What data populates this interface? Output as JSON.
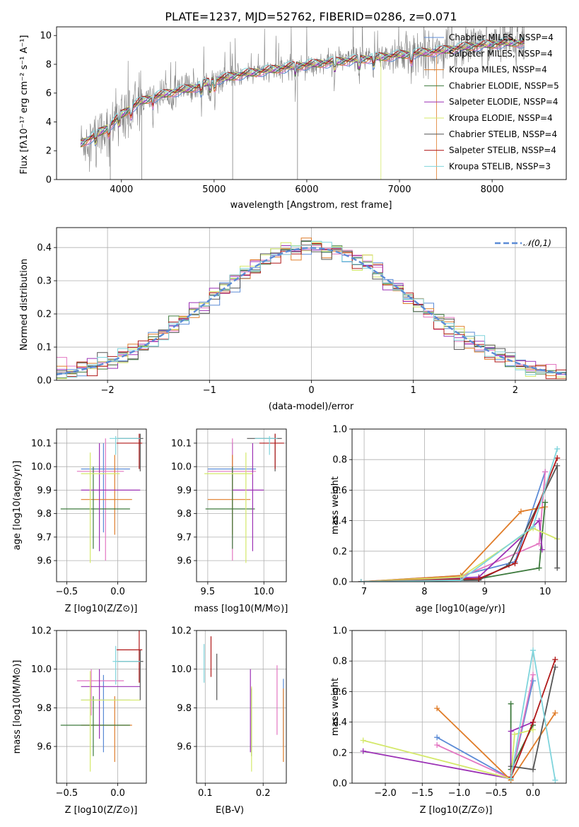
{
  "colors": {
    "chabrier_miles": "#5b8bd6",
    "salpeter_miles": "#e377c2",
    "kroupa_miles": "#e07d2a",
    "chabrier_elodie": "#3d7a3d",
    "salpeter_elodie": "#9b30b5",
    "kroupa_elodie": "#d4e86a",
    "chabrier_stelib": "#555555",
    "salpeter_stelib": "#b01818",
    "kroupa_stelib": "#7fd4dc",
    "data": "#808080",
    "gauss": "#5b8bd6"
  },
  "chart_data": [
    {
      "id": "spectrum",
      "type": "line",
      "title": "PLATE=1237, MJD=52762, FIBERID=0286, z=0.071",
      "xlabel": "wavelength [Angstrom, rest frame]",
      "ylabel": "Flux [fλ10⁻¹⁷ erg cm⁻² s⁻¹ A⁻¹]",
      "xlim": [
        3300,
        8800
      ],
      "ylim": [
        0,
        10.6
      ],
      "xticks": [
        4000,
        5000,
        6000,
        7000,
        8000
      ],
      "yticks": [
        0,
        2,
        4,
        6,
        8,
        10
      ],
      "legend_position": "top-right",
      "legend": [
        {
          "label": "Chabrier MILES, NSSP=4",
          "color": "#5b8bd6"
        },
        {
          "label": "Salpeter MILES, NSSP=4",
          "color": "#e377c2"
        },
        {
          "label": "Kroupa MILES, NSSP=4",
          "color": "#e07d2a"
        },
        {
          "label": "Chabrier ELODIE, NSSP=5",
          "color": "#3d7a3d"
        },
        {
          "label": "Salpeter ELODIE, NSSP=4",
          "color": "#9b30b5"
        },
        {
          "label": "Kroupa ELODIE, NSSP=4",
          "color": "#d4e86a"
        },
        {
          "label": "Chabrier STELIB, NSSP=4",
          "color": "#555555"
        },
        {
          "label": "Salpeter STELIB, NSSP=4",
          "color": "#b01818"
        },
        {
          "label": "Kroupa STELIB, NSSP=3",
          "color": "#7fd4dc"
        }
      ],
      "continuum": [
        [
          3560,
          2.5
        ],
        [
          3700,
          3.0
        ],
        [
          3850,
          3.6
        ],
        [
          4000,
          4.5
        ],
        [
          4200,
          5.4
        ],
        [
          4500,
          6.0
        ],
        [
          4800,
          6.4
        ],
        [
          5000,
          6.9
        ],
        [
          5300,
          7.3
        ],
        [
          5600,
          7.6
        ],
        [
          5900,
          7.9
        ],
        [
          6200,
          8.1
        ],
        [
          6500,
          8.3
        ],
        [
          6800,
          8.5
        ],
        [
          7100,
          8.7
        ],
        [
          7400,
          8.9
        ],
        [
          7700,
          9.2
        ],
        [
          8000,
          9.4
        ],
        [
          8200,
          9.5
        ]
      ]
    },
    {
      "id": "residuals",
      "type": "bar",
      "xlabel": "(data-model)/error",
      "ylabel": "Normed distribution",
      "xlim": [
        -2.5,
        2.5
      ],
      "ylim": [
        0,
        0.46
      ],
      "xticks": [
        -2,
        -1,
        0,
        1,
        2
      ],
      "yticks": [
        0.0,
        0.1,
        0.2,
        0.3,
        0.4
      ],
      "grid": true,
      "legend_position": "top-right",
      "gauss_label": "𝒩(0,1)"
    },
    {
      "id": "age-vs-Z",
      "type": "scatter",
      "xlabel": "Z [log10(Z/Z⊙)]",
      "ylabel": "age [log10(age/yr)]",
      "xlim": [
        -0.6,
        0.28
      ],
      "ylim": [
        9.51,
        10.16
      ],
      "xticks": [
        -0.5,
        0.0
      ],
      "yticks": [
        9.6,
        9.7,
        9.8,
        9.9,
        10.0,
        10.1
      ],
      "grid": true,
      "points": [
        {
          "c": "#5b8bd6",
          "x": -0.14,
          "xe": [
            -0.36,
            0.12
          ],
          "y": 9.99,
          "ye": [
            9.72,
            10.1
          ]
        },
        {
          "c": "#e377c2",
          "x": -0.12,
          "xe": [
            -0.4,
            0.06
          ],
          "y": 9.98,
          "ye": [
            9.6,
            10.12
          ]
        },
        {
          "c": "#e07d2a",
          "x": -0.03,
          "xe": [
            -0.36,
            0.14
          ],
          "y": 9.86,
          "ye": [
            9.71,
            10.05
          ]
        },
        {
          "c": "#3d7a3d",
          "x": -0.24,
          "xe": [
            -0.56,
            0.12
          ],
          "y": 9.82,
          "ye": [
            9.65,
            10.0
          ]
        },
        {
          "c": "#9b30b5",
          "x": -0.18,
          "xe": [
            -0.36,
            0.22
          ],
          "y": 9.9,
          "ye": [
            9.64,
            10.1
          ]
        },
        {
          "c": "#d4e86a",
          "x": -0.27,
          "xe": [
            -0.36,
            0.02
          ],
          "y": 9.97,
          "ye": [
            9.59,
            10.06
          ]
        },
        {
          "c": "#555555",
          "x": 0.22,
          "xe": [
            0.0,
            0.25
          ],
          "y": 10.12,
          "ye": [
            9.98,
            10.14
          ]
        },
        {
          "c": "#b01818",
          "x": 0.21,
          "xe": [
            -0.01,
            0.24
          ],
          "y": 10.1,
          "ye": [
            9.99,
            10.14
          ]
        },
        {
          "c": "#7fd4dc",
          "x": -0.02,
          "xe": [
            -0.08,
            0.22
          ],
          "y": 10.12,
          "ye": [
            10.05,
            10.13
          ]
        }
      ]
    },
    {
      "id": "age-vs-mass",
      "type": "scatter",
      "xlabel": "mass [log10(M/M⊙)]",
      "ylabel": "",
      "xlim": [
        9.4,
        10.2
      ],
      "ylim": [
        9.51,
        10.16
      ],
      "xticks": [
        9.5,
        10.0
      ],
      "yticks": [
        9.6,
        9.7,
        9.8,
        9.9,
        10.0,
        10.1
      ],
      "grid": true,
      "points": [
        {
          "c": "#5b8bd6",
          "x": 9.72,
          "xe": [
            9.5,
            9.93
          ],
          "y": 9.99,
          "ye": [
            9.72,
            10.1
          ]
        },
        {
          "c": "#e377c2",
          "x": 9.72,
          "xe": [
            9.5,
            9.93
          ],
          "y": 9.98,
          "ye": [
            9.6,
            10.12
          ]
        },
        {
          "c": "#e07d2a",
          "x": 9.72,
          "xe": [
            9.5,
            9.88
          ],
          "y": 9.86,
          "ye": [
            9.71,
            10.05
          ]
        },
        {
          "c": "#3d7a3d",
          "x": 9.72,
          "xe": [
            9.48,
            9.92
          ],
          "y": 9.82,
          "ye": [
            9.65,
            10.0
          ]
        },
        {
          "c": "#9b30b5",
          "x": 9.9,
          "xe": [
            9.72,
            10.0
          ],
          "y": 9.9,
          "ye": [
            9.64,
            10.1
          ]
        },
        {
          "c": "#d4e86a",
          "x": 9.84,
          "xe": [
            9.47,
            9.9
          ],
          "y": 9.97,
          "ye": [
            9.59,
            10.06
          ]
        },
        {
          "c": "#555555",
          "x": 10.1,
          "xe": [
            9.85,
            10.16
          ],
          "y": 10.12,
          "ye": [
            9.98,
            10.14
          ]
        },
        {
          "c": "#b01818",
          "x": 10.1,
          "xe": [
            9.96,
            10.18
          ],
          "y": 10.1,
          "ye": [
            9.99,
            10.14
          ]
        },
        {
          "c": "#7fd4dc",
          "x": 10.05,
          "xe": [
            9.92,
            10.12
          ],
          "y": 10.12,
          "ye": [
            10.05,
            10.13
          ]
        }
      ]
    },
    {
      "id": "weight-vs-age",
      "type": "line",
      "xlabel": "age [log10(age/yr)]",
      "ylabel": "mass weight",
      "xlim": [
        6.8,
        10.35
      ],
      "ylim": [
        0,
        1.0
      ],
      "xticks": [
        7,
        8,
        9,
        10
      ],
      "yticks": [
        0.0,
        0.2,
        0.4,
        0.6,
        0.8,
        1.0
      ],
      "grid": true,
      "series": [
        {
          "c": "#5b8bd6",
          "x": [
            6.95,
            8.6,
            9.5,
            10.0
          ],
          "y": [
            0.0,
            0.04,
            0.13,
            0.72
          ]
        },
        {
          "c": "#e377c2",
          "x": [
            6.95,
            8.6,
            9.9,
            10.0
          ],
          "y": [
            0.0,
            0.03,
            0.25,
            0.72
          ]
        },
        {
          "c": "#e07d2a",
          "x": [
            6.95,
            8.6,
            9.6,
            10.0
          ],
          "y": [
            0.0,
            0.04,
            0.46,
            0.49
          ]
        },
        {
          "c": "#3d7a3d",
          "x": [
            6.95,
            8.9,
            9.9,
            10.0
          ],
          "y": [
            0.0,
            0.02,
            0.09,
            0.52
          ]
        },
        {
          "c": "#9b30b5",
          "x": [
            6.95,
            8.9,
            9.9,
            9.95
          ],
          "y": [
            0.0,
            0.03,
            0.4,
            0.21
          ]
        },
        {
          "c": "#d4e86a",
          "x": [
            6.95,
            8.6,
            9.8,
            10.2
          ],
          "y": [
            0.0,
            0.03,
            0.35,
            0.28
          ]
        },
        {
          "c": "#555555",
          "x": [
            6.95,
            8.9,
            9.4,
            10.2,
            10.2
          ],
          "y": [
            0.0,
            0.01,
            0.11,
            0.76,
            0.09
          ]
        },
        {
          "c": "#b01818",
          "x": [
            6.95,
            8.9,
            9.5,
            10.2
          ],
          "y": [
            0.0,
            0.02,
            0.12,
            0.81
          ]
        },
        {
          "c": "#7fd4dc",
          "x": [
            6.95,
            8.6,
            9.8,
            10.2
          ],
          "y": [
            0.0,
            0.01,
            0.36,
            0.87
          ]
        }
      ]
    },
    {
      "id": "mass-vs-Z",
      "type": "scatter",
      "xlabel": "Z [log10(Z/Z⊙)]",
      "ylabel": "mass [log10(M/M⊙)]",
      "xlim": [
        -0.6,
        0.28
      ],
      "ylim": [
        9.41,
        10.2
      ],
      "xticks": [
        -0.5,
        0.0
      ],
      "yticks": [
        9.6,
        9.8,
        10.0,
        10.2
      ],
      "grid": true,
      "points": [
        {
          "c": "#5b8bd6",
          "x": -0.14,
          "xe": [
            -0.36,
            0.12
          ],
          "y": 9.84,
          "ye": [
            9.57,
            9.97
          ]
        },
        {
          "c": "#e377c2",
          "x": -0.26,
          "xe": [
            -0.4,
            0.06
          ],
          "y": 9.94,
          "ye": [
            9.76,
            10.0
          ]
        },
        {
          "c": "#e07d2a",
          "x": -0.03,
          "xe": [
            -0.36,
            0.14
          ],
          "y": 9.71,
          "ye": [
            9.52,
            9.86
          ]
        },
        {
          "c": "#3d7a3d",
          "x": -0.24,
          "xe": [
            -0.56,
            0.12
          ],
          "y": 9.71,
          "ye": [
            9.55,
            9.86
          ]
        },
        {
          "c": "#9b30b5",
          "x": -0.18,
          "xe": [
            -0.36,
            0.22
          ],
          "y": 9.91,
          "ye": [
            9.64,
            10.0
          ]
        },
        {
          "c": "#d4e86a",
          "x": -0.27,
          "xe": [
            -0.36,
            0.22
          ],
          "y": 9.84,
          "ye": [
            9.47,
            9.99
          ]
        },
        {
          "c": "#555555",
          "x": 0.22,
          "xe": [
            0.0,
            0.25
          ],
          "y": 10.04,
          "ye": [
            9.84,
            10.1
          ]
        },
        {
          "c": "#b01818",
          "x": 0.21,
          "xe": [
            -0.01,
            0.24
          ],
          "y": 10.1,
          "ye": [
            9.93,
            10.2
          ]
        },
        {
          "c": "#7fd4dc",
          "x": -0.02,
          "xe": [
            -0.05,
            0.22
          ],
          "y": 10.04,
          "ye": [
            9.92,
            10.12
          ]
        }
      ]
    },
    {
      "id": "mass-vs-ebv",
      "type": "scatter",
      "xlabel": "E(B-V)",
      "ylabel": "",
      "xlim": [
        0.085,
        0.24
      ],
      "ylim": [
        9.41,
        10.2
      ],
      "xticks": [
        0.1,
        0.2
      ],
      "yticks": [
        9.6,
        9.8,
        10.0,
        10.2
      ],
      "grid": true,
      "points": [
        {
          "c": "#5b8bd6",
          "x": 0.235,
          "ye": [
            9.6,
            9.95
          ],
          "y": 9.8
        },
        {
          "c": "#e377c2",
          "x": 0.224,
          "ye": [
            9.66,
            10.02
          ],
          "y": 9.84
        },
        {
          "c": "#e07d2a",
          "x": 0.235,
          "ye": [
            9.52,
            9.9
          ],
          "y": 9.71
        },
        {
          "c": "#3d7a3d",
          "x": 0.18,
          "ye": [
            9.55,
            9.9
          ],
          "y": 9.71
        },
        {
          "c": "#9b30b5",
          "x": 0.178,
          "ye": [
            9.57,
            10.0
          ],
          "y": 9.91
        },
        {
          "c": "#d4e86a",
          "x": 0.18,
          "ye": [
            9.47,
            9.91
          ],
          "y": 9.84
        },
        {
          "c": "#555555",
          "x": 0.12,
          "ye": [
            9.84,
            10.08
          ],
          "y": 10.04
        },
        {
          "c": "#b01818",
          "x": 0.11,
          "ye": [
            9.96,
            10.17
          ],
          "y": 10.1
        },
        {
          "c": "#7fd4dc",
          "x": 0.098,
          "ye": [
            9.93,
            10.13
          ],
          "y": 10.04
        }
      ]
    },
    {
      "id": "weight-vs-Z",
      "type": "line",
      "xlabel": "Z [log10(Z/Z⊙)]",
      "ylabel": "mass weight",
      "xlim": [
        -2.45,
        0.45
      ],
      "ylim": [
        0,
        1.0
      ],
      "xticks": [
        -2.0,
        -1.5,
        -1.0,
        -0.5,
        0.0
      ],
      "yticks": [
        0.0,
        0.2,
        0.4,
        0.6,
        0.8,
        1.0
      ],
      "grid": true,
      "series": [
        {
          "c": "#5b8bd6",
          "x": [
            -1.3,
            -0.3,
            0.0
          ],
          "y": [
            0.3,
            0.03,
            0.67
          ]
        },
        {
          "c": "#e377c2",
          "x": [
            -1.3,
            -0.3,
            0.0
          ],
          "y": [
            0.25,
            0.03,
            0.71
          ]
        },
        {
          "c": "#e07d2a",
          "x": [
            -1.3,
            -0.3,
            0.3
          ],
          "y": [
            0.49,
            0.02,
            0.46
          ]
        },
        {
          "c": "#3d7a3d",
          "x": [
            -0.3,
            -0.3,
            0.0
          ],
          "y": [
            0.52,
            0.09,
            0.38
          ]
        },
        {
          "c": "#9b30b5",
          "x": [
            -2.3,
            -0.3,
            -0.3,
            0.0
          ],
          "y": [
            0.21,
            0.03,
            0.34,
            0.4
          ]
        },
        {
          "c": "#d4e86a",
          "x": [
            -2.3,
            -0.3,
            -0.25,
            0.0
          ],
          "y": [
            0.28,
            0.03,
            0.32,
            0.35
          ]
        },
        {
          "c": "#555555",
          "x": [
            -0.3,
            0.0,
            0.3
          ],
          "y": [
            0.11,
            0.09,
            0.76
          ]
        },
        {
          "c": "#b01818",
          "x": [
            -0.3,
            0.0,
            0.3
          ],
          "y": [
            0.04,
            0.4,
            0.81
          ]
        },
        {
          "c": "#7fd4dc",
          "x": [
            -0.3,
            0.0,
            0.3
          ],
          "y": [
            0.03,
            0.87,
            0.02
          ]
        }
      ]
    }
  ]
}
